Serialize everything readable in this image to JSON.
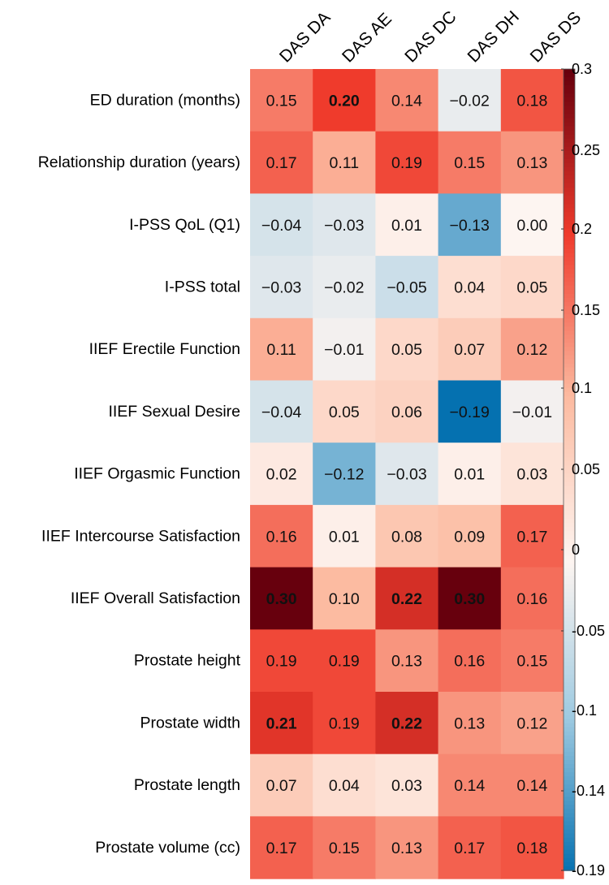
{
  "chart_data": {
    "type": "heatmap",
    "columns": [
      "DAS DA",
      "DAS AE",
      "DAS DC",
      "DAS DH",
      "DAS DS"
    ],
    "rows": [
      "ED duration (months)",
      "Relationship duration (years)",
      "I-PSS QoL (Q1)",
      "I-PSS total",
      "IIEF Erectile Function",
      "IIEF Sexual Desire",
      "IIEF Orgasmic Function",
      "IIEF Intercourse Satisfaction",
      "IIEF Overall Satisfaction",
      "Prostate height",
      "Prostate width",
      "Prostate length",
      "Prostate volume (cc)"
    ],
    "values": [
      [
        0.15,
        0.2,
        0.14,
        -0.02,
        0.18
      ],
      [
        0.17,
        0.11,
        0.19,
        0.15,
        0.13
      ],
      [
        -0.04,
        -0.03,
        0.01,
        -0.13,
        0.0
      ],
      [
        -0.03,
        -0.02,
        -0.05,
        0.04,
        0.05
      ],
      [
        0.11,
        -0.01,
        0.05,
        0.07,
        0.12
      ],
      [
        -0.04,
        0.05,
        0.06,
        -0.19,
        -0.01
      ],
      [
        0.02,
        -0.12,
        -0.03,
        0.01,
        0.03
      ],
      [
        0.16,
        0.01,
        0.08,
        0.09,
        0.17
      ],
      [
        0.3,
        0.1,
        0.22,
        0.3,
        0.16
      ],
      [
        0.19,
        0.19,
        0.13,
        0.16,
        0.15
      ],
      [
        0.21,
        0.19,
        0.22,
        0.13,
        0.12
      ],
      [
        0.07,
        0.04,
        0.03,
        0.14,
        0.14
      ],
      [
        0.17,
        0.15,
        0.13,
        0.17,
        0.18
      ]
    ],
    "labels": [
      [
        "0.15",
        "0.20",
        "0.14",
        "−0.02",
        "0.18"
      ],
      [
        "0.17",
        "0.11",
        "0.19",
        "0.15",
        "0.13"
      ],
      [
        "−0.04",
        "−0.03",
        "0.01",
        "−0.13",
        "0.00"
      ],
      [
        "−0.03",
        "−0.02",
        "−0.05",
        "0.04",
        "0.05"
      ],
      [
        "0.11",
        "−0.01",
        "0.05",
        "0.07",
        "0.12"
      ],
      [
        "−0.04",
        "0.05",
        "0.06",
        "−0.19",
        "−0.01"
      ],
      [
        "0.02",
        "−0.12",
        "−0.03",
        "0.01",
        "0.03"
      ],
      [
        "0.16",
        "0.01",
        "0.08",
        "0.09",
        "0.17"
      ],
      [
        "0.30",
        "0.10",
        "0.22",
        "0.30",
        "0.16"
      ],
      [
        "0.19",
        "0.19",
        "0.13",
        "0.16",
        "0.15"
      ],
      [
        "0.21",
        "0.19",
        "0.22",
        "0.13",
        "0.12"
      ],
      [
        "0.07",
        "0.04",
        "0.03",
        "0.14",
        "0.14"
      ],
      [
        "0.17",
        "0.15",
        "0.13",
        "0.17",
        "0.18"
      ]
    ],
    "bold": [
      [
        false,
        true,
        false,
        false,
        false
      ],
      [
        false,
        false,
        false,
        false,
        false
      ],
      [
        false,
        false,
        false,
        false,
        false
      ],
      [
        false,
        false,
        false,
        false,
        false
      ],
      [
        false,
        false,
        false,
        false,
        false
      ],
      [
        false,
        false,
        false,
        false,
        false
      ],
      [
        false,
        false,
        false,
        false,
        false
      ],
      [
        false,
        false,
        false,
        false,
        false
      ],
      [
        true,
        false,
        true,
        true,
        false
      ],
      [
        false,
        false,
        false,
        false,
        false
      ],
      [
        true,
        false,
        true,
        false,
        false
      ],
      [
        false,
        false,
        false,
        false,
        false
      ],
      [
        false,
        false,
        false,
        false,
        false
      ]
    ],
    "colorbar": {
      "range": [
        -0.19,
        0.3
      ],
      "ticks": [
        {
          "value": 0.3,
          "label": "0.3"
        },
        {
          "value": 0.25,
          "label": "0.25"
        },
        {
          "value": 0.2,
          "label": "0.2"
        },
        {
          "value": 0.15,
          "label": "0.15"
        },
        {
          "value": 0.1,
          "label": "0.1"
        },
        {
          "value": 0.05,
          "label": "0.05"
        },
        {
          "value": 0.0,
          "label": "0"
        },
        {
          "value": -0.05,
          "label": "-0.05"
        },
        {
          "value": -0.1,
          "label": "-0.1"
        },
        {
          "value": -0.14,
          "label": "-0.14"
        },
        {
          "value": -0.19,
          "label": "-0.19"
        }
      ],
      "colors": {
        "max": "#67000d",
        "high": "#ef3b2c",
        "mid_pos": "#fcbba1",
        "zero": "#fdf5f1",
        "mid_neg": "#9ecae1",
        "min": "#0571b0"
      }
    }
  }
}
